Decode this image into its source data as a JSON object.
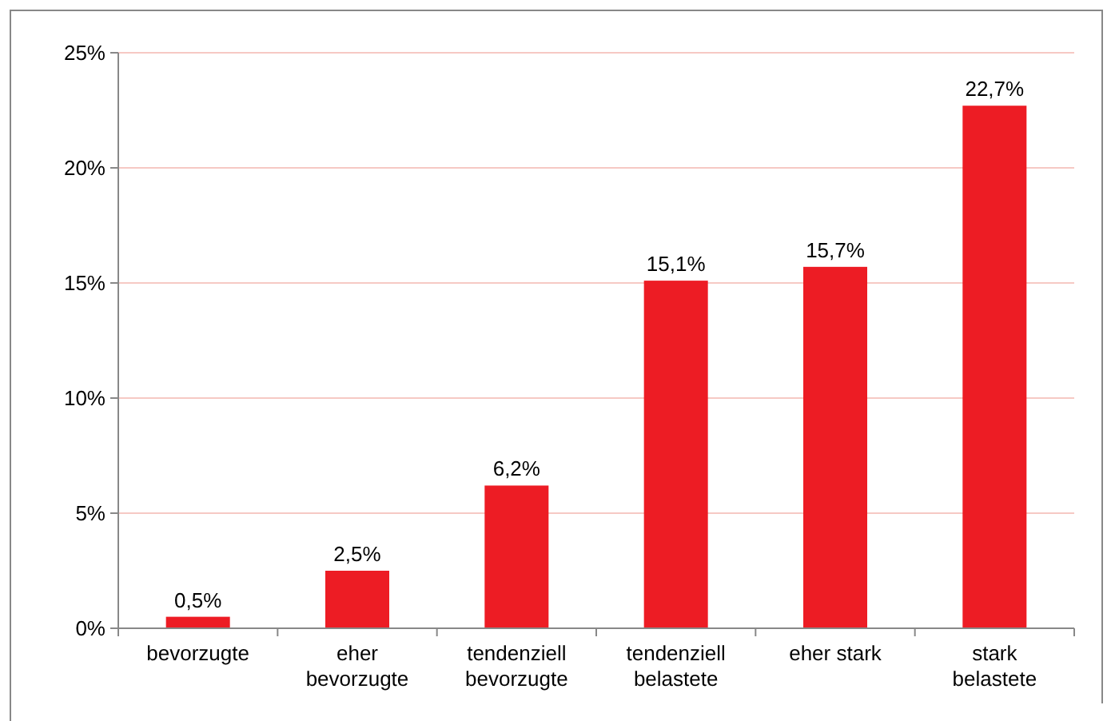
{
  "chart_data": {
    "type": "bar",
    "categories": [
      "bevorzugte",
      "eher\nbevorzugte",
      "tendenziell\nbevorzugte",
      "tendenziell\nbelastete",
      "eher stark",
      "stark\nbelastete"
    ],
    "values": [
      0.5,
      2.5,
      6.2,
      15.1,
      15.7,
      22.7
    ],
    "value_labels": [
      "0,5%",
      "2,5%",
      "6,2%",
      "15,1%",
      "15,7%",
      "22,7%"
    ],
    "color": "#ed1c24",
    "ylim": [
      0,
      25
    ],
    "yticks": [
      {
        "value": 0,
        "label": "0%"
      },
      {
        "value": 5,
        "label": "5%"
      },
      {
        "value": 10,
        "label": "10%"
      },
      {
        "value": 15,
        "label": "15%"
      },
      {
        "value": 20,
        "label": "20%"
      },
      {
        "value": 25,
        "label": "25%"
      }
    ],
    "grid": "y"
  }
}
